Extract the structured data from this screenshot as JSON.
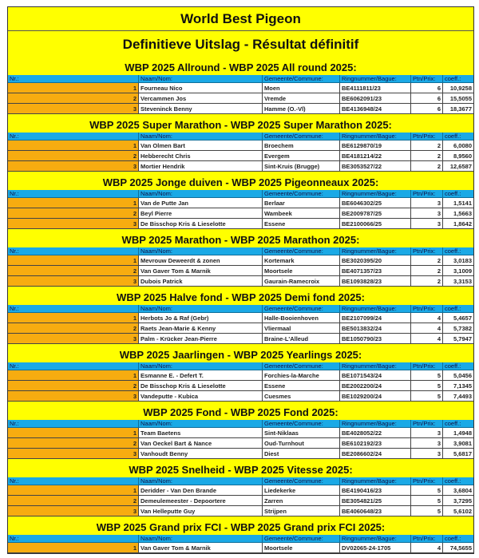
{
  "title": "World Best Pigeon",
  "subtitle": "Definitieve Uitslag - Résultat définitif",
  "columns": [
    "Nr.:",
    "Naam/Nom:",
    "Gemeente/Commune:",
    "Ringnummer/Bague:",
    "Ptn/Prix:",
    "coeff.:"
  ],
  "colors": {
    "band": "#ffff00",
    "header": "#1aa9e6",
    "rank": "#f7ac10"
  },
  "sections": [
    {
      "title": "WBP 2025 Allround - WBP 2025 All round 2025:",
      "rows": [
        [
          "1",
          "Fourneau Nico",
          "Moen",
          "BE4111811/23",
          "6",
          "10,9258"
        ],
        [
          "2",
          "Vercammen Jos",
          "Vremde",
          "BE6062091/23",
          "6",
          "15,5055"
        ],
        [
          "3",
          "Steveninck Benny",
          "Hamme (O.-Vl)",
          "BE4136948/24",
          "6",
          "18,3677"
        ]
      ]
    },
    {
      "title": "WBP 2025 Super Marathon - WBP 2025 Super Marathon 2025:",
      "rows": [
        [
          "1",
          "Van Olmen Bart",
          "Broechem",
          "BE6129870/19",
          "2",
          "6,0080"
        ],
        [
          "2",
          "Hebberecht Chris",
          "Evergem",
          "BE4181214/22",
          "2",
          "8,9560"
        ],
        [
          "3",
          "Mortier Hendrik",
          "Sint-Kruis (Brugge)",
          "BE3053527/22",
          "2",
          "12,6587"
        ]
      ]
    },
    {
      "title": "WBP 2025 Jonge duiven - WBP 2025 Pigeonneaux 2025:",
      "rows": [
        [
          "1",
          "Van de Putte Jan",
          "Berlaar",
          "BE6046302/25",
          "3",
          "1,5141"
        ],
        [
          "2",
          "Beyl Pierre",
          "Wambeek",
          "BE2009787/25",
          "3",
          "1,5663"
        ],
        [
          "3",
          "De Bisschop Kris & Lieselotte",
          "Essene",
          "BE2100066/25",
          "3",
          "1,8642"
        ]
      ]
    },
    {
      "title": "WBP 2025 Marathon - WBP 2025 Marathon 2025:",
      "rows": [
        [
          "1",
          "Mevrouw Deweerdt & zonen",
          "Kortemark",
          "BE3020395/20",
          "2",
          "3,0183"
        ],
        [
          "2",
          "Van Gaver Tom & Marnik",
          "Moortsele",
          "BE4071357/23",
          "2",
          "3,1009"
        ],
        [
          "3",
          "Dubois Patrick",
          "Gaurain-Ramecroix",
          "BE1093828/23",
          "2",
          "3,3153"
        ]
      ]
    },
    {
      "title": "WBP 2025 Halve fond - WBP 2025 Demi fond 2025:",
      "rows": [
        [
          "1",
          "Herbots Jo & Raf (Gebr)",
          "Halle-Booienhoven",
          "BE2107099/24",
          "4",
          "5,4657"
        ],
        [
          "2",
          "Raets Jean-Marie & Kenny",
          "Vliermaal",
          "BE5013832/24",
          "4",
          "5,7382"
        ],
        [
          "3",
          "Palm - Krücker Jean-Pierre",
          "Braine-L'Alleud",
          "BE1050790/23",
          "4",
          "5,7947"
        ]
      ]
    },
    {
      "title": "WBP 2025 Jaarlingen - WBP 2025 Yearlings 2025:",
      "rows": [
        [
          "1",
          "Esmanne E. - Defert T.",
          "Forchies-la-Marche",
          "BE1071543/24",
          "5",
          "5,0456"
        ],
        [
          "2",
          "De Bisschop Kris & Lieselotte",
          "Essene",
          "BE2002200/24",
          "5",
          "7,1345"
        ],
        [
          "3",
          "Vandeputte - Kubica",
          "Cuesmes",
          "BE1029200/24",
          "5",
          "7,4493"
        ]
      ]
    },
    {
      "title": "WBP 2025 Fond - WBP 2025 Fond 2025:",
      "rows": [
        [
          "1",
          "Team Baetens",
          "Sint-Niklaas",
          "BE4028052/22",
          "3",
          "1,4948"
        ],
        [
          "2",
          "Van Oeckel Bart & Nance",
          "Oud-Turnhout",
          "BE6102192/23",
          "3",
          "3,9081"
        ],
        [
          "3",
          "Vanhoudt Benny",
          "Diest",
          "BE2086602/24",
          "3",
          "5,6817"
        ]
      ]
    },
    {
      "title": "WBP 2025 Snelheid - WBP 2025 Vitesse 2025:",
      "rows": [
        [
          "1",
          "Deridder - Van Den Brande",
          "Liedekerke",
          "BE4190416/23",
          "5",
          "3,6804"
        ],
        [
          "2",
          "Demeulemeester - Depoortere",
          "Zarren",
          "BE3054821/25",
          "5",
          "3,7295"
        ],
        [
          "3",
          "Van Helleputte Guy",
          "Strijpen",
          "BE4060648/23",
          "5",
          "5,6102"
        ]
      ]
    },
    {
      "title": "WBP 2025 Grand prix FCI - WBP 2025 Grand prix FCI 2025:",
      "rows": [
        [
          "1",
          "Van Gaver Tom & Marnik",
          "Moortsele",
          "DV02065-24-1705",
          "4",
          "74,5655"
        ]
      ]
    }
  ]
}
